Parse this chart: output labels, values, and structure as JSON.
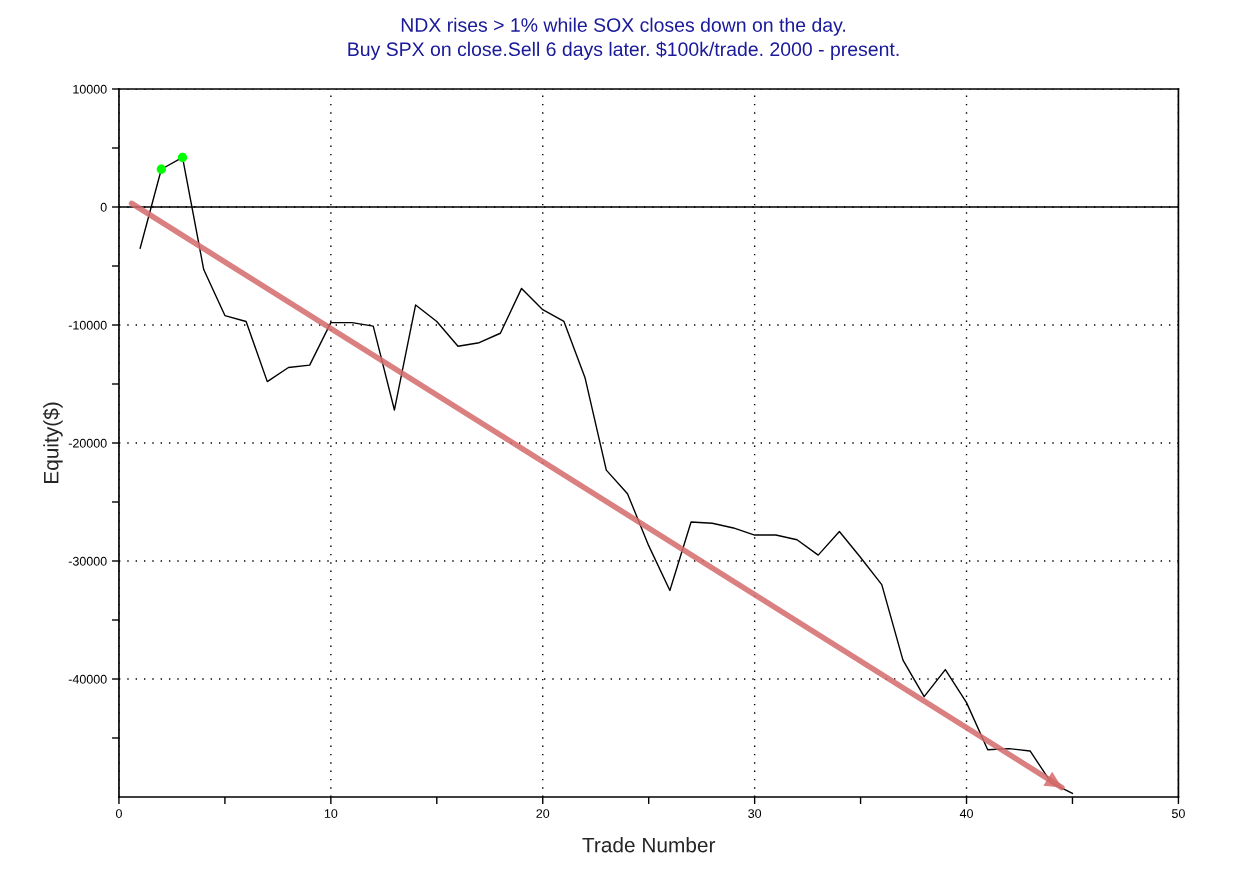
{
  "chart_data": {
    "type": "line",
    "title": "NDX rises > 1% while SOX closes down on the day.",
    "subtitle": "Buy SPX on close.Sell 6 days later. $100k/trade. 2000 - present.",
    "xlabel": "Trade Number",
    "ylabel": "Equity($)",
    "series": [
      {
        "color": "#000000",
        "x": [
          1,
          2,
          3,
          4,
          5,
          6,
          7,
          8,
          9,
          10,
          11,
          12,
          13,
          14,
          15,
          16,
          17,
          18,
          19,
          20,
          21,
          22,
          23,
          24,
          25,
          26,
          27,
          28,
          29,
          30,
          31,
          32,
          33,
          34,
          35,
          36,
          37,
          38,
          39,
          40,
          41,
          42,
          43,
          44,
          45
        ],
        "values": [
          -3500,
          3200,
          4200,
          -5300,
          -9200,
          -9700,
          -14800,
          -13600,
          -13400,
          -9800,
          -9800,
          -10100,
          -17200,
          -8300,
          -9700,
          -11800,
          -11500,
          -10700,
          -6900,
          -8700,
          -9700,
          -14500,
          -22300,
          -24300,
          -28700,
          -32500,
          -26700,
          -26800,
          -27200,
          -27800,
          -27800,
          -28200,
          -29500,
          -27500,
          -29700,
          -32000,
          -38400,
          -41500,
          -39200,
          -42000,
          -46000,
          -45900,
          -46100,
          -48800,
          -49700
        ]
      },
      {
        "type": "scatter",
        "color": "#00ff00",
        "marker": "circle",
        "x": [
          2,
          3
        ],
        "values": [
          3200,
          4200
        ]
      },
      {
        "color": "#d46a6a",
        "x": [
          0.6,
          44.5
        ],
        "values": [
          300,
          -49200
        ]
      }
    ],
    "ref_lines": [
      {
        "axis": "y",
        "value": 0,
        "color": "#000000"
      }
    ],
    "xlim": [
      0,
      50
    ],
    "ylim": [
      -50000,
      10000
    ],
    "xticks": [
      0,
      {
        "value": 5,
        "label": null
      },
      10,
      {
        "value": 15,
        "label": null
      },
      20,
      {
        "value": 25,
        "label": null
      },
      30,
      {
        "value": 35,
        "label": null
      },
      40,
      {
        "value": 45,
        "label": null
      },
      50
    ],
    "yticks": [
      10000,
      {
        "value": 5000,
        "label": null
      },
      0,
      {
        "value": -5000,
        "label": null
      },
      -10000,
      {
        "value": -15000,
        "label": null
      },
      -20000,
      {
        "value": -25000,
        "label": null
      },
      -30000,
      {
        "value": -35000,
        "label": null
      },
      -40000,
      {
        "value": -45000,
        "label": null
      }
    ],
    "grid": true,
    "legend": false,
    "marker": "none"
  }
}
